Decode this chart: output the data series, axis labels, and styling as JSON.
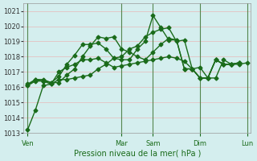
{
  "bg_color": "#d4eeee",
  "grid_color": "#e8b8b8",
  "line_color": "#1a6b1a",
  "marker": "D",
  "markersize": 2.5,
  "linewidth": 1.0,
  "xlabel": "Pression niveau de la mer( hPa )",
  "ylim": [
    1013,
    1021.5
  ],
  "yticks": [
    1013,
    1014,
    1015,
    1016,
    1017,
    1018,
    1019,
    1020,
    1021
  ],
  "day_labels": [
    "Ven",
    "Mar",
    "Sam",
    "Dim",
    "Lun"
  ],
  "day_positions": [
    0,
    12,
    16,
    22,
    28
  ],
  "vline_positions": [
    0,
    12,
    16,
    22,
    28
  ],
  "series": [
    [
      1013.2,
      1014.5,
      1016.1,
      1016.2,
      1016.5,
      1016.5,
      1016.6,
      1016.7,
      1016.8,
      1017.2,
      1017.5,
      1017.9,
      1018.0,
      1018.5,
      1018.7,
      1019.3,
      1019.6,
      1019.8,
      1019.9,
      1019.0,
      1019.1,
      1017.2,
      1017.3,
      1016.6,
      1016.6,
      1017.8,
      1017.5,
      1017.5,
      1017.6
    ],
    [
      1016.1,
      1016.5,
      1016.5,
      1016.3,
      1016.3,
      1016.8,
      1017.2,
      1018.0,
      1018.7,
      1019.3,
      1019.2,
      1019.3,
      1018.5,
      1018.3,
      1018.0,
      1017.8,
      1018.3,
      1018.8,
      1019.2,
      1019.1,
      1017.2,
      1017.2,
      1016.6,
      1016.6,
      1017.8,
      1017.5,
      1017.5,
      1017.6
    ],
    [
      1016.1,
      1016.4,
      1016.4,
      1016.3,
      1016.7,
      1017.5,
      1018.1,
      1018.8,
      1018.8,
      1018.9,
      1018.5,
      1017.9,
      1017.8,
      1017.8,
      1018.5,
      1019.0,
      1020.7,
      1019.9,
      1019.1,
      1019.1,
      1017.2,
      1017.2,
      1016.6,
      1016.6,
      1017.8,
      1017.5,
      1017.5,
      1017.6
    ],
    [
      1016.2,
      1016.5,
      1016.4,
      1016.2,
      1017.0,
      1017.3,
      1017.5,
      1017.8,
      1017.8,
      1017.9,
      1017.6,
      1017.3,
      1017.4,
      1017.5,
      1017.6,
      1017.7,
      1017.8,
      1017.9,
      1018.0,
      1017.9,
      1017.7,
      1017.2,
      1016.6,
      1016.6,
      1017.8,
      1017.5,
      1017.5,
      1017.6
    ]
  ]
}
